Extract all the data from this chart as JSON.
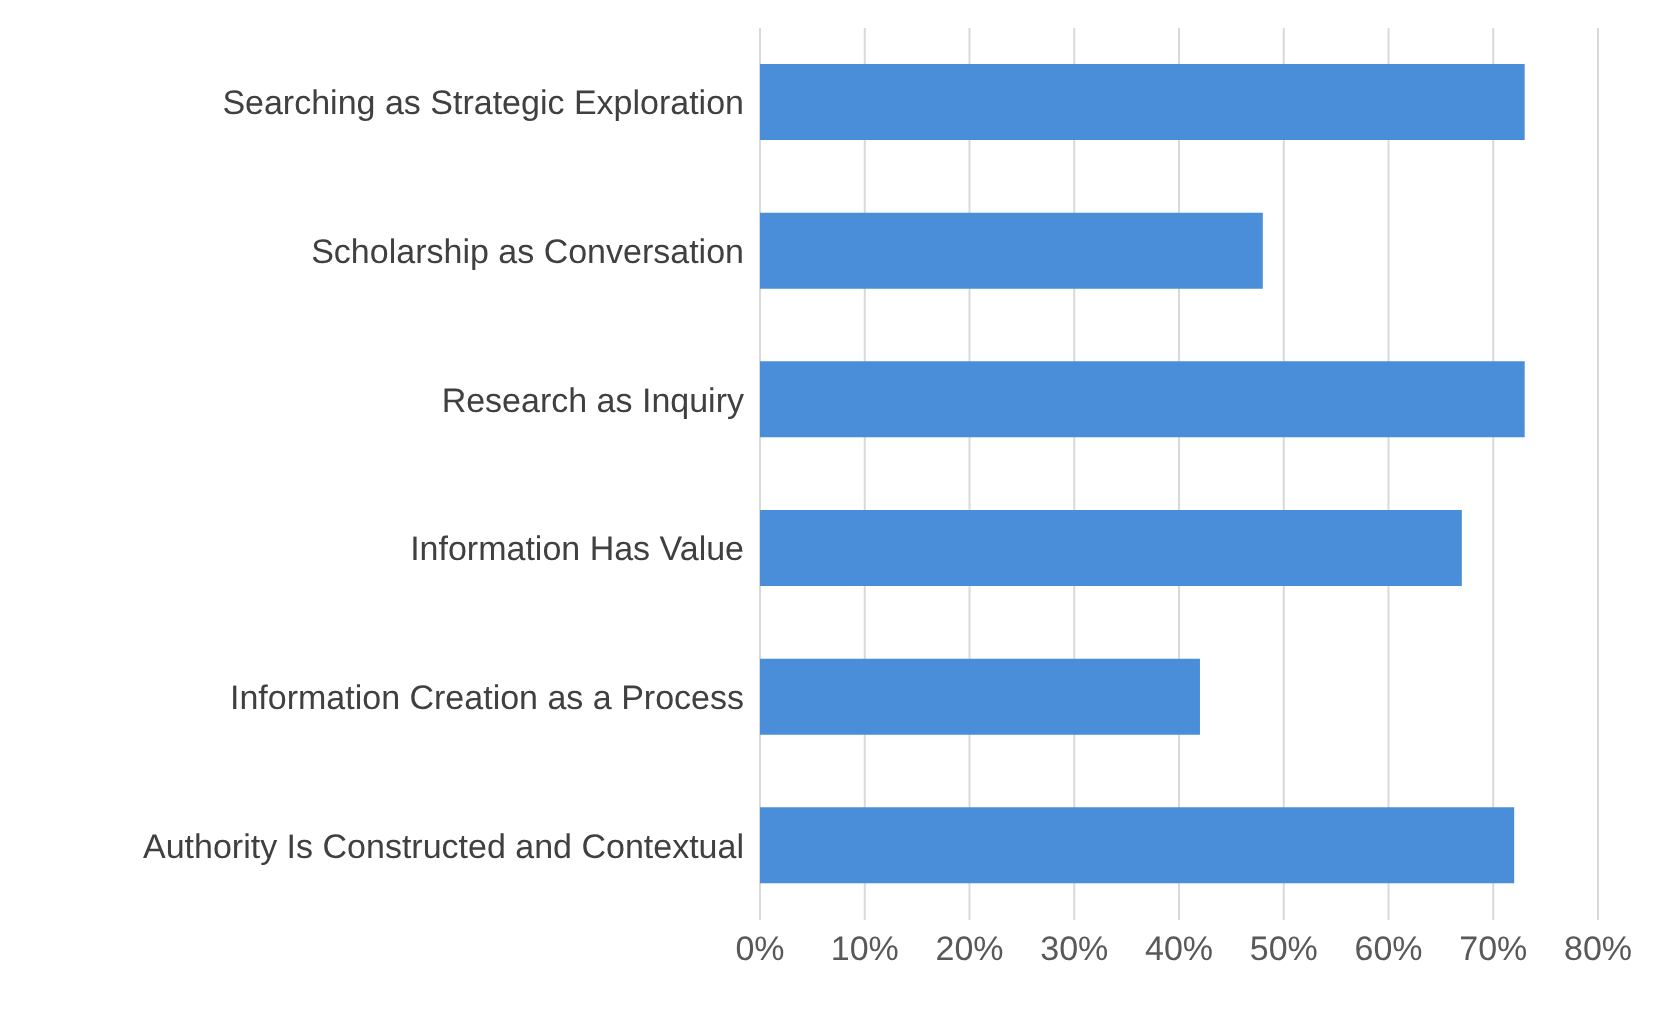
{
  "chart_data": {
    "type": "bar",
    "orientation": "horizontal",
    "categories": [
      "Searching as Strategic Exploration",
      "Scholarship as Conversation",
      "Research as Inquiry",
      "Information Has Value",
      "Information Creation as a Process",
      "Authority Is Constructed and Contextual"
    ],
    "values": [
      73,
      48,
      73,
      67,
      42,
      72
    ],
    "color": "#4a8dd8",
    "xlim": [
      0,
      80
    ],
    "xticks": [
      {
        "value": 0,
        "label": "0%"
      },
      {
        "value": 10,
        "label": "10%"
      },
      {
        "value": 20,
        "label": "20%"
      },
      {
        "value": 30,
        "label": "30%"
      },
      {
        "value": 40,
        "label": "40%"
      },
      {
        "value": 50,
        "label": "50%"
      },
      {
        "value": 60,
        "label": "60%"
      },
      {
        "value": 70,
        "label": "70%"
      },
      {
        "value": 80,
        "label": "80%"
      }
    ],
    "grid": "x"
  }
}
